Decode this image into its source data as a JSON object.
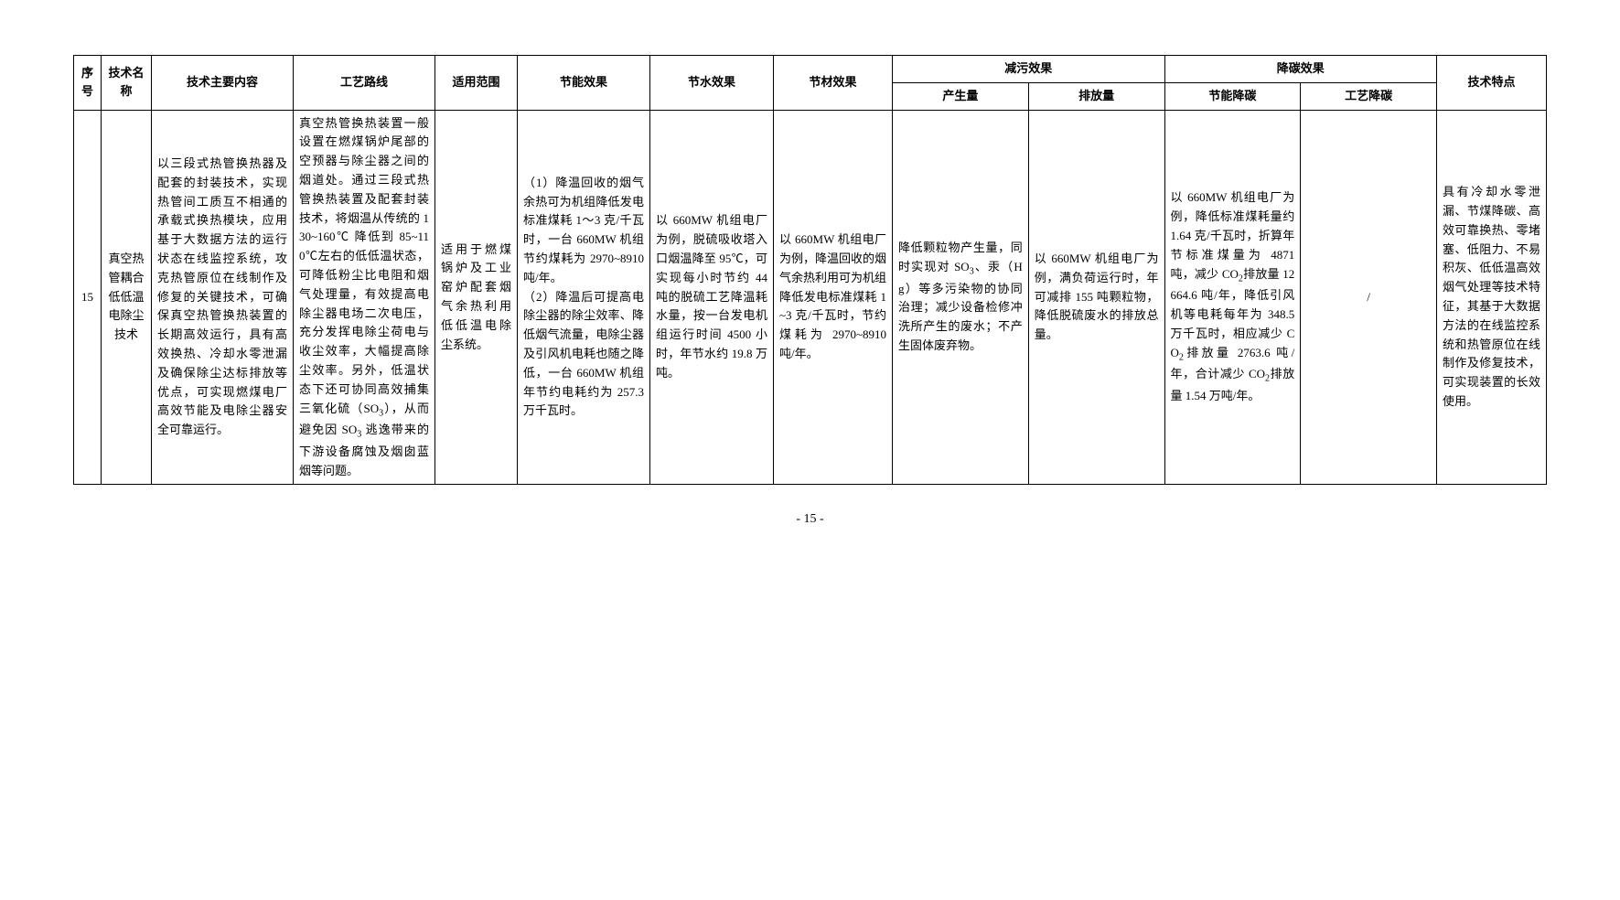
{
  "headers": {
    "seq": "序号",
    "tech_name": "技术名称",
    "tech_content": "技术主要内容",
    "process": "工艺路线",
    "scope": "适用范围",
    "energy_effect": "节能效果",
    "water_effect": "节水效果",
    "material_effect": "节材效果",
    "pollution_reduction": "减污效果",
    "produce": "产生量",
    "emit": "排放量",
    "carbon_reduction": "降碳效果",
    "energy_carbon": "节能降碳",
    "process_carbon": "工艺降碳",
    "tech_feature": "技术特点"
  },
  "row": {
    "seq": "15",
    "tech_name": "真空热管耦合低低温电除尘技术",
    "tech_content": "以三段式热管换热器及配套的封装技术，实现热管间工质互不相通的承载式换热模块，应用基于大数据方法的运行状态在线监控系统，攻克热管原位在线制作及修复的关键技术，可确保真空热管换热装置的长期高效运行，具有高效换热、冷却水零泄漏及确保除尘达标排放等优点，可实现燃煤电厂高效节能及电除尘器安全可靠运行。",
    "process": "真空热管换热装置一般设置在燃煤锅炉尾部的空预器与除尘器之间的烟道处。通过三段式热管换热装置及配套封装技术，将烟温从传统的 130~160℃ 降低到 85~110℃左右的低低温状态，可降低粉尘比电阻和烟气处理量，有效提高电除尘器电场二次电压，充分发挥电除尘荷电与收尘效率，大幅提高除尘效率。另外，低温状态下还可协同高效捕集三氧化硫（SO₃），从而避免因 SO₃ 逃逸带来的下游设备腐蚀及烟囱蓝烟等问题。",
    "scope": "适用于燃煤锅炉及工业窑炉配套烟气余热利用低低温电除尘系统。",
    "energy_effect": "（1）降温回收的烟气余热可为机组降低发电标准煤耗 1～3 克/千瓦时，一台 660MW 机组节约煤耗为 2970~8910 吨/年。\n（2）降温后可提高电除尘器的除尘效率、降低烟气流量，电除尘器及引风机电耗也随之降低，一台 660MW 机组年节约电耗约为 257.3 万千瓦时。",
    "water_effect": "以 660MW 机组电厂为例，脱硫吸收塔入口烟温降至 95℃，可实现每小时节约 44 吨的脱硫工艺降温耗水量，按一台发电机组运行时间 4500 小时，年节水约 19.8 万吨。",
    "material_effect": "以 660MW 机组电厂为例，降温回收的烟气余热利用可为机组降低发电标准煤耗 1~3 克/千瓦时，节约煤耗为 2970~8910 吨/年。",
    "produce": "降低颗粒物产生量，同时实现对 SO₃、汞（Hg）等多污染物的协同治理；减少设备检修冲洗所产生的废水；不产生固体废弃物。",
    "emit": "以 660MW 机组电厂为例，满负荷运行时，年可减排 155 吨颗粒物，降低脱硫废水的排放总量。",
    "energy_carbon": "以 660MW 机组电厂为例，降低标准煤耗量约 1.64 克/千瓦时，折算年节标准煤量为 4871 吨，减少 CO₂排放量 12664.6 吨/年，降低引风机等电耗每年为 348.5 万千瓦时，相应减少 CO₂排放量 2763.6 吨/年，合计减少 CO₂排放量 1.54 万吨/年。",
    "process_carbon": "/",
    "tech_feature": "具有冷却水零泄漏、节煤降碳、高效可靠换热、零堵塞、低阻力、不易积灰、低低温高效烟气处理等技术特征，其基于大数据方法的在线监控系统和热管原位在线制作及修复技术，可实现装置的长效使用。"
  },
  "page_number": "- 15 -",
  "colors": {
    "border": "#000000",
    "background": "#ffffff",
    "text": "#000000"
  },
  "typography": {
    "font_family": "SimSun",
    "cell_fontsize": 13,
    "header_fontweight": "bold"
  }
}
